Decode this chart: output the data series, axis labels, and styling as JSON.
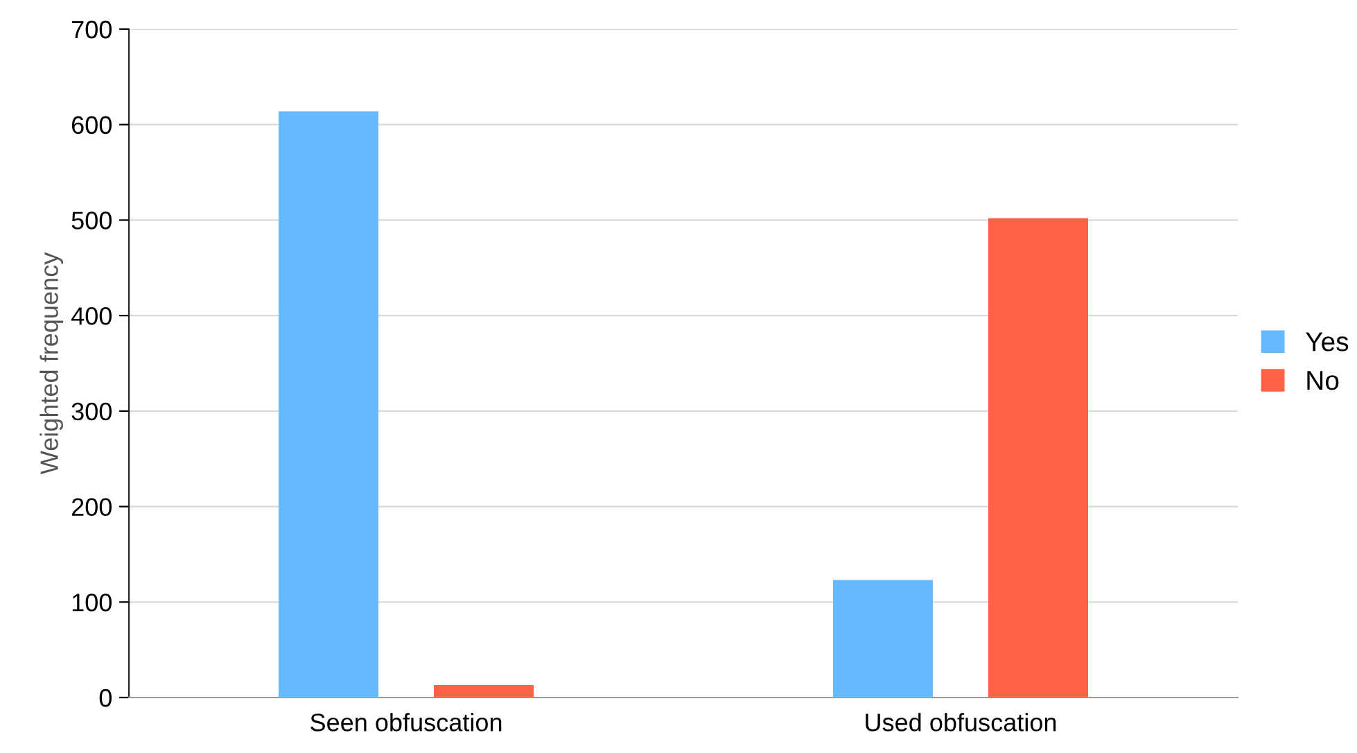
{
  "chart_data": {
    "type": "bar",
    "ylabel": "Weighted frequency",
    "categories": [
      "Seen obfuscation",
      "Used obfuscation"
    ],
    "series": [
      {
        "name": "Yes",
        "color": "#66b8ff",
        "values": [
          614,
          123
        ]
      },
      {
        "name": "No",
        "color": "#ff6347",
        "values": [
          13,
          502
        ]
      }
    ],
    "ylim": [
      0,
      700
    ],
    "yticks": [
      0,
      100,
      200,
      300,
      400,
      500,
      600,
      700
    ],
    "grid": "y",
    "legend": "right"
  }
}
